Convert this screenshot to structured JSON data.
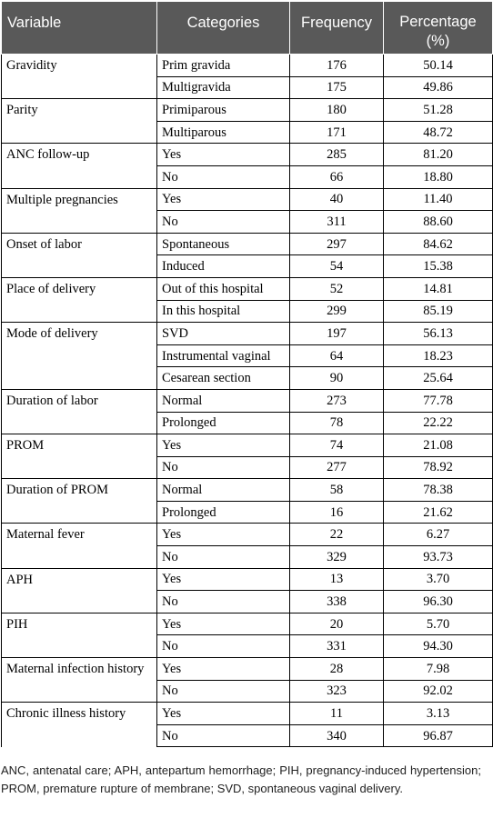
{
  "table": {
    "headers": [
      "Variable",
      "Categories",
      "Frequency",
      "Percentage (%)"
    ],
    "groups": [
      {
        "variable": "Gravidity",
        "rows": [
          [
            "Prim gravida",
            "176",
            "50.14"
          ],
          [
            "Multigravida",
            "175",
            "49.86"
          ]
        ]
      },
      {
        "variable": "Parity",
        "rows": [
          [
            "Primiparous",
            "180",
            "51.28"
          ],
          [
            "Multiparous",
            "171",
            "48.72"
          ]
        ]
      },
      {
        "variable": "ANC follow-up",
        "rows": [
          [
            "Yes",
            "285",
            "81.20"
          ],
          [
            "No",
            "66",
            "18.80"
          ]
        ]
      },
      {
        "variable": "Multiple pregnancies",
        "rows": [
          [
            "Yes",
            "40",
            "11.40"
          ],
          [
            "No",
            "311",
            "88.60"
          ]
        ]
      },
      {
        "variable": "Onset of labor",
        "rows": [
          [
            "Spontaneous",
            "297",
            "84.62"
          ],
          [
            "Induced",
            "54",
            "15.38"
          ]
        ]
      },
      {
        "variable": "Place of delivery",
        "rows": [
          [
            "Out of this hospital",
            "52",
            "14.81"
          ],
          [
            "In this hospital",
            "299",
            "85.19"
          ]
        ]
      },
      {
        "variable": "Mode of delivery",
        "rows": [
          [
            "SVD",
            "197",
            "56.13"
          ],
          [
            "Instrumental vaginal",
            "64",
            "18.23"
          ],
          [
            "Cesarean section",
            "90",
            "25.64"
          ]
        ]
      },
      {
        "variable": "Duration of labor",
        "rows": [
          [
            "Normal",
            "273",
            "77.78"
          ],
          [
            "Prolonged",
            "78",
            "22.22"
          ]
        ]
      },
      {
        "variable": "PROM",
        "rows": [
          [
            "Yes",
            "74",
            "21.08"
          ],
          [
            "No",
            "277",
            "78.92"
          ]
        ]
      },
      {
        "variable": "Duration of PROM",
        "rows": [
          [
            "Normal",
            "58",
            "78.38"
          ],
          [
            "Prolonged",
            "16",
            "21.62"
          ]
        ]
      },
      {
        "variable": "Maternal fever",
        "rows": [
          [
            "Yes",
            "22",
            "6.27"
          ],
          [
            "No",
            "329",
            "93.73"
          ]
        ]
      },
      {
        "variable": "APH",
        "rows": [
          [
            "Yes",
            "13",
            "3.70"
          ],
          [
            "No",
            "338",
            "96.30"
          ]
        ]
      },
      {
        "variable": "PIH",
        "rows": [
          [
            "Yes",
            "20",
            "5.70"
          ],
          [
            "No",
            "331",
            "94.30"
          ]
        ]
      },
      {
        "variable": "Maternal infection history",
        "rows": [
          [
            "Yes",
            "28",
            "7.98"
          ],
          [
            "No",
            "323",
            "92.02"
          ]
        ]
      },
      {
        "variable": "Chronic illness history",
        "rows": [
          [
            "Yes",
            "11",
            "3.13"
          ],
          [
            "No",
            "340",
            "96.87"
          ]
        ]
      }
    ]
  },
  "footnote": "ANC, antenatal care; APH, antepartum hemorrhage; PIH, pregnancy-induced hypertension; PROM, premature rupture of membrane; SVD, spontaneous vaginal delivery.",
  "colors": {
    "header_bg": "#595959",
    "header_text": "#ffffff",
    "border": "#000000"
  }
}
